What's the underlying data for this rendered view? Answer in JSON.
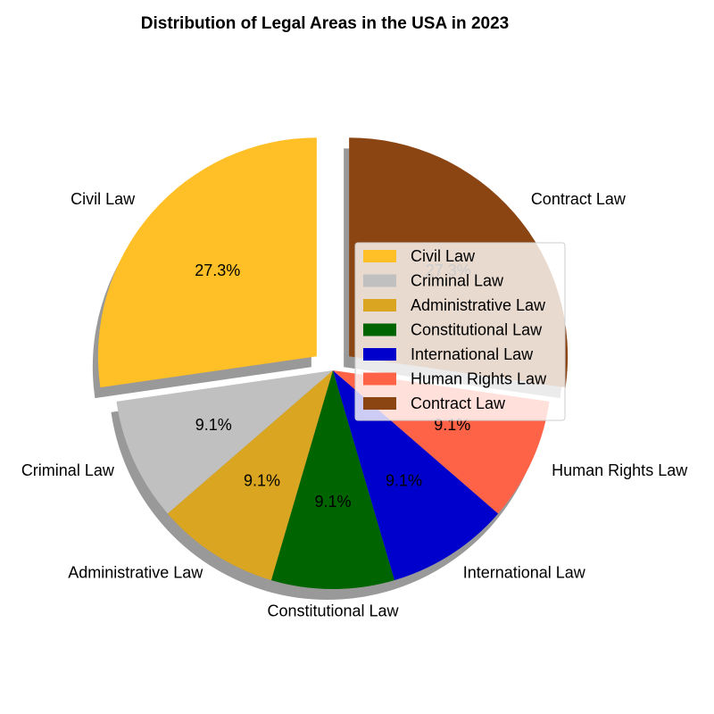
{
  "chart_data": {
    "type": "pie",
    "title": "Distribution of Legal Areas in the USA in 2023",
    "categories": [
      "Civil Law",
      "Criminal Law",
      "Administrative Law",
      "Constitutional Law",
      "International Law",
      "Human Rights Law",
      "Contract Law"
    ],
    "values": [
      27.3,
      9.1,
      9.1,
      9.1,
      9.1,
      9.1,
      27.3
    ],
    "percent_labels": [
      "27.3%",
      "9.1%",
      "9.1%",
      "9.1%",
      "9.1%",
      "9.1%",
      "27.3%"
    ],
    "colors": [
      "#FFBF27",
      "#C0C0C0",
      "#DAA520",
      "#006400",
      "#0000CD",
      "#FF6347",
      "#8B4513"
    ],
    "exploded": [
      "Civil Law",
      "Contract Law"
    ],
    "start_angle_deg": 90,
    "direction": "counterclockwise",
    "shadow": true,
    "legend": {
      "entries": [
        "Civil Law",
        "Criminal Law",
        "Administrative Law",
        "Constitutional Law",
        "International Law",
        "Human Rights Law",
        "Contract Law"
      ],
      "placement": "center-right"
    }
  }
}
